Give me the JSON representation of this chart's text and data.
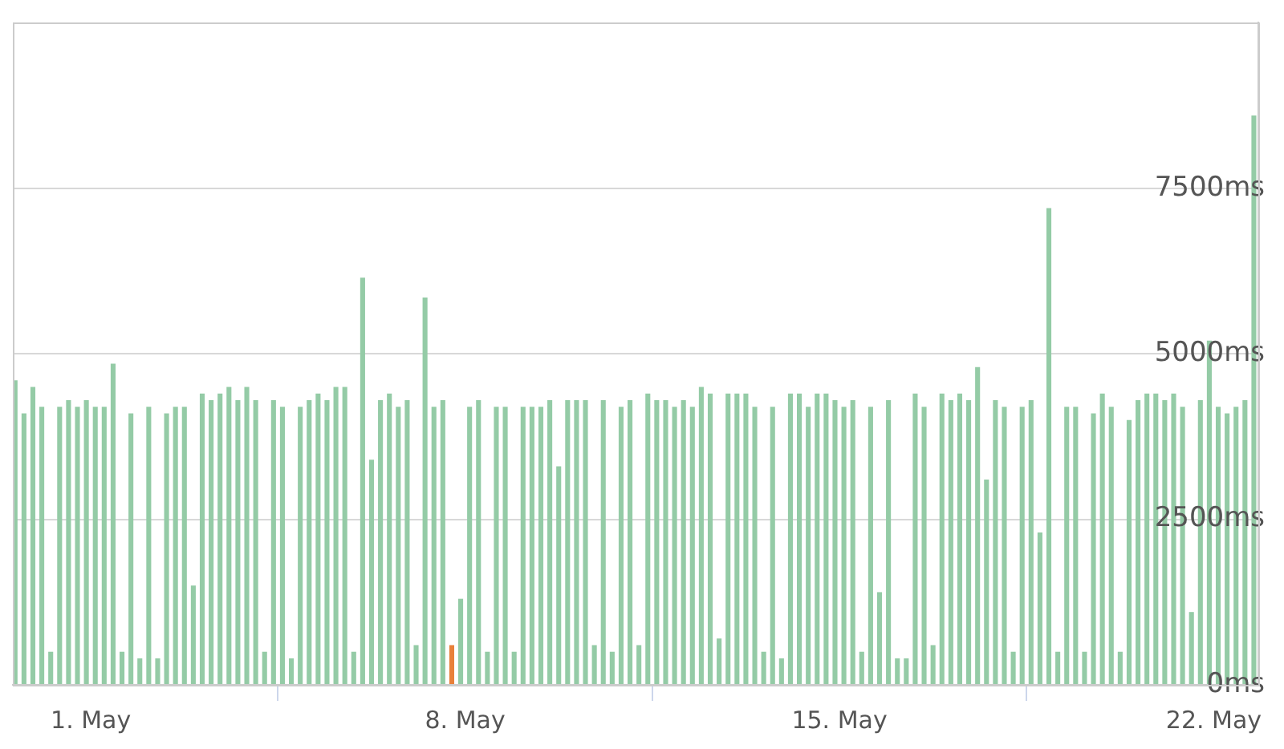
{
  "chart_data": {
    "type": "bar",
    "grid": "y",
    "xlim": [
      "--04-29T13:00",
      "--05-22T20:00"
    ],
    "ylim": [
      0,
      10000
    ],
    "xticks": [
      {
        "value": "--05-01",
        "label": "1. May"
      },
      {
        "value": "--05-08",
        "label": "8. May"
      },
      {
        "value": "--05-15",
        "label": "15. May"
      },
      {
        "value": "--05-22",
        "label": "22. May"
      }
    ],
    "yticks": [
      {
        "value": 0,
        "label": "0ms"
      },
      {
        "value": 2500,
        "label": "2500ms"
      },
      {
        "value": 5000,
        "label": "5000ms"
      },
      {
        "value": 7500,
        "label": "7500ms"
      }
    ],
    "x": [
      "--04-29T14:00",
      "--04-29T18:00",
      "--04-29T22:00",
      "--04-30T02:00",
      "--04-30T06:00",
      "--04-30T10:00",
      "--04-30T14:00",
      "--04-30T18:00",
      "--04-30T22:00",
      "--05-01T02:00",
      "--05-01T06:00",
      "--05-01T10:00",
      "--05-01T14:00",
      "--05-01T18:00",
      "--05-01T22:00",
      "--05-02T02:00",
      "--05-02T06:00",
      "--05-02T10:00",
      "--05-02T14:00",
      "--05-02T18:00",
      "--05-02T22:00",
      "--05-03T02:00",
      "--05-03T06:00",
      "--05-03T10:00",
      "--05-03T14:00",
      "--05-03T18:00",
      "--05-03T22:00",
      "--05-04T02:00",
      "--05-04T06:00",
      "--05-04T10:00",
      "--05-04T14:00",
      "--05-04T18:00",
      "--05-04T22:00",
      "--05-05T02:00",
      "--05-05T06:00",
      "--05-05T10:00",
      "--05-05T14:00",
      "--05-05T18:00",
      "--05-05T22:00",
      "--05-06T02:00",
      "--05-06T06:00",
      "--05-06T10:00",
      "--05-06T14:00",
      "--05-06T18:00",
      "--05-06T22:00",
      "--05-07T02:00",
      "--05-07T06:00",
      "--05-07T10:00",
      "--05-07T14:00",
      "--05-07T18:00",
      "--05-07T22:00",
      "--05-08T02:00",
      "--05-08T06:00",
      "--05-08T10:00",
      "--05-08T14:00",
      "--05-08T18:00",
      "--05-08T22:00",
      "--05-09T02:00",
      "--05-09T06:00",
      "--05-09T10:00",
      "--05-09T14:00",
      "--05-09T18:00",
      "--05-09T22:00",
      "--05-10T02:00",
      "--05-10T06:00",
      "--05-10T10:00",
      "--05-10T14:00",
      "--05-10T18:00",
      "--05-10T22:00",
      "--05-11T02:00",
      "--05-11T06:00",
      "--05-11T10:00",
      "--05-11T14:00",
      "--05-11T18:00",
      "--05-11T22:00",
      "--05-12T02:00",
      "--05-12T06:00",
      "--05-12T10:00",
      "--05-12T14:00",
      "--05-12T18:00",
      "--05-12T22:00",
      "--05-13T02:00",
      "--05-13T06:00",
      "--05-13T10:00",
      "--05-13T14:00",
      "--05-13T18:00",
      "--05-13T22:00",
      "--05-14T02:00",
      "--05-14T06:00",
      "--05-14T10:00",
      "--05-14T14:00",
      "--05-14T18:00",
      "--05-14T22:00",
      "--05-15T02:00",
      "--05-15T06:00",
      "--05-15T10:00",
      "--05-15T14:00",
      "--05-15T18:00",
      "--05-15T22:00",
      "--05-16T02:00",
      "--05-16T06:00",
      "--05-16T10:00",
      "--05-16T14:00",
      "--05-16T18:00",
      "--05-16T22:00",
      "--05-17T02:00",
      "--05-17T06:00",
      "--05-17T10:00",
      "--05-17T14:00",
      "--05-17T18:00",
      "--05-17T22:00",
      "--05-18T02:00",
      "--05-18T06:00",
      "--05-18T10:00",
      "--05-18T14:00",
      "--05-18T18:00",
      "--05-18T22:00",
      "--05-19T02:00",
      "--05-19T06:00",
      "--05-19T10:00",
      "--05-19T14:00",
      "--05-19T18:00",
      "--05-19T22:00",
      "--05-20T02:00",
      "--05-20T06:00",
      "--05-20T10:00",
      "--05-20T14:00",
      "--05-20T18:00",
      "--05-20T22:00",
      "--05-21T02:00",
      "--05-21T06:00",
      "--05-21T10:00",
      "--05-21T14:00",
      "--05-21T18:00",
      "--05-21T22:00",
      "--05-22T02:00",
      "--05-22T06:00",
      "--05-22T10:00",
      "--05-22T14:00",
      "--05-22T18:00"
    ],
    "series": [
      {
        "color": "#94cba6",
        "values": [
          4600,
          4100,
          4500,
          4200,
          500,
          4200,
          4300,
          4200,
          4300,
          4200,
          4200,
          4850,
          500,
          4100,
          400,
          4200,
          400,
          4100,
          4200,
          4200,
          1500,
          4400,
          4300,
          4400,
          4500,
          4300,
          4500,
          4300,
          500,
          4300,
          4200,
          400,
          4200,
          4300,
          4400,
          4300,
          4500,
          4500,
          500,
          6150,
          3400,
          4300,
          4400,
          4200,
          4300,
          600,
          5850,
          4200,
          4300,
          null,
          1300,
          4200,
          4300,
          500,
          4200,
          4200,
          500,
          4200,
          4200,
          4200,
          4300,
          3300,
          4300,
          4300,
          4300,
          600,
          4300,
          500,
          4200,
          4300,
          600,
          4400,
          4300,
          4300,
          4200,
          4300,
          4200,
          4500,
          4400,
          700,
          4400,
          4400,
          4400,
          4200,
          500,
          4200,
          400,
          4400,
          4400,
          4200,
          4400,
          4400,
          4300,
          4200,
          4300,
          500,
          4200,
          1400,
          4300,
          400,
          400,
          4400,
          4200,
          600,
          4400,
          4300,
          4400,
          4300,
          4800,
          3100,
          4300,
          4200,
          500,
          4200,
          4300,
          2300,
          7200,
          500,
          4200,
          4200,
          500,
          4100,
          4400,
          4200,
          500,
          4000,
          4300,
          4400,
          4400,
          4300,
          4400,
          4200,
          1100,
          4300,
          5200,
          4200,
          4100,
          4200,
          4300,
          8600
        ]
      },
      {
        "color": "#e8803a",
        "values": [
          null,
          null,
          null,
          null,
          null,
          null,
          null,
          null,
          null,
          null,
          null,
          null,
          null,
          null,
          null,
          null,
          null,
          null,
          null,
          null,
          null,
          null,
          null,
          null,
          null,
          null,
          null,
          null,
          null,
          null,
          null,
          null,
          null,
          null,
          null,
          null,
          null,
          null,
          null,
          null,
          null,
          null,
          null,
          null,
          null,
          null,
          null,
          null,
          null,
          600,
          null,
          null,
          null,
          null,
          null,
          null,
          null,
          null,
          null,
          null,
          null,
          null,
          null,
          null,
          null,
          null,
          null,
          null,
          null,
          null,
          null,
          null,
          null,
          null,
          null,
          null,
          null,
          null,
          null,
          null,
          null,
          null,
          null,
          null,
          null,
          null,
          null,
          null,
          null,
          null,
          null,
          null,
          null,
          null,
          null,
          null,
          null,
          null,
          null,
          null,
          null,
          null,
          null,
          null,
          null,
          null,
          null,
          null,
          null,
          null,
          null,
          null,
          null,
          null,
          null,
          null,
          null,
          null,
          null,
          null,
          null,
          null,
          null,
          null,
          null,
          null,
          null,
          null,
          null,
          null,
          null,
          null,
          null,
          null,
          null,
          null,
          null,
          null,
          null,
          null
        ]
      }
    ]
  }
}
